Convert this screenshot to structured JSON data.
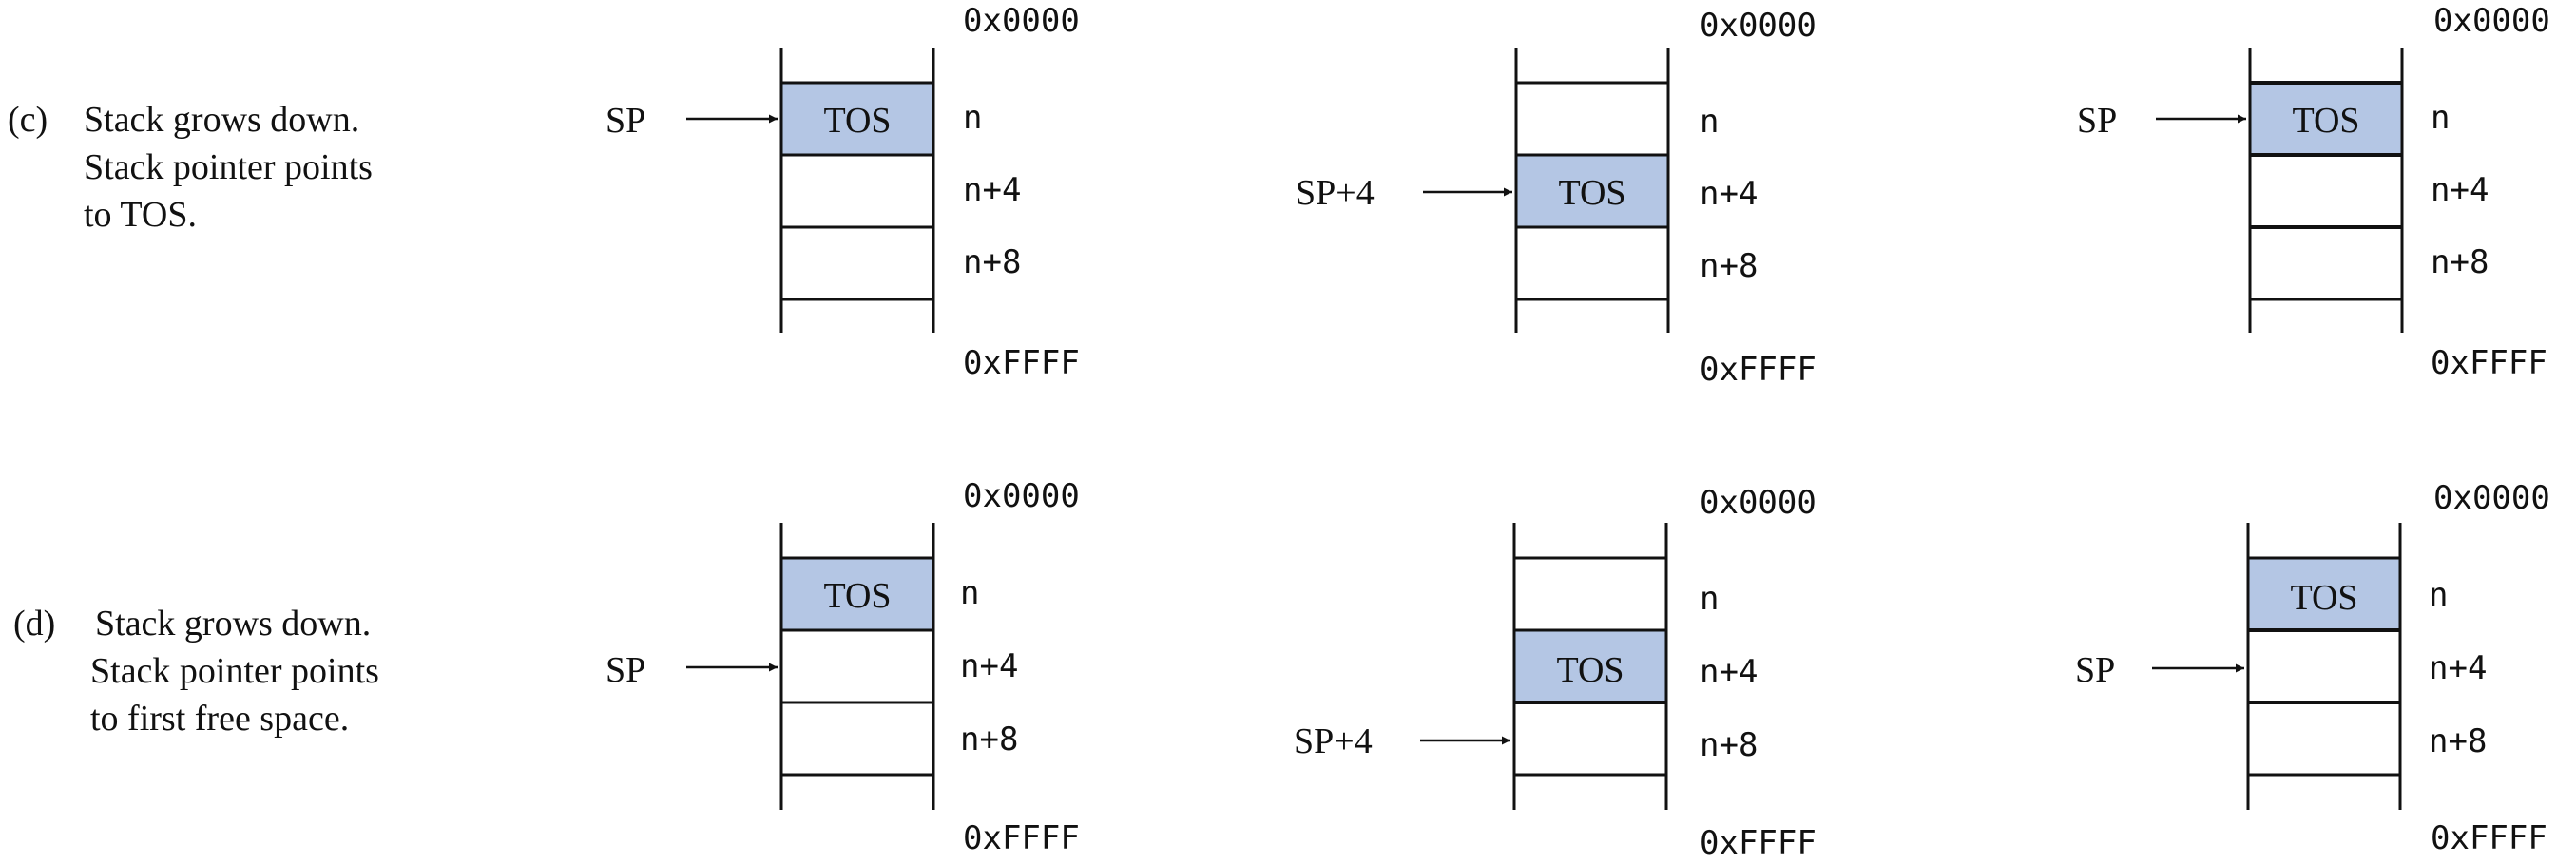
{
  "rows": [
    {
      "label": "(c)",
      "caption": [
        "Stack grows down.",
        "Stack pointer points",
        "to TOS."
      ],
      "diagrams": [
        {
          "pointer": "SP",
          "arrow_slot": 0,
          "tos_slot": 0,
          "top": "0x0000",
          "bottom": "0xFFFF",
          "slots": [
            "n",
            "n+4",
            "n+8"
          ],
          "tos_label": "TOS"
        },
        {
          "pointer": "SP+4",
          "arrow_slot": 1,
          "tos_slot": 1,
          "top": "0x0000",
          "bottom": "0xFFFF",
          "slots": [
            "n",
            "n+4",
            "n+8"
          ],
          "tos_label": "TOS"
        },
        {
          "pointer": "SP",
          "arrow_slot": 0,
          "tos_slot": 0,
          "top": "0x0000",
          "bottom": "0xFFFF",
          "slots": [
            "n",
            "n+4",
            "n+8"
          ],
          "tos_label": "TOS"
        }
      ]
    },
    {
      "label": "(d)",
      "caption": [
        "Stack grows down.",
        "Stack pointer points",
        "to first free space."
      ],
      "diagrams": [
        {
          "pointer": "SP",
          "arrow_slot": 1,
          "tos_slot": 0,
          "top": "0x0000",
          "bottom": "0xFFFF",
          "slots": [
            "n",
            "n+4",
            "n+8"
          ],
          "tos_label": "TOS"
        },
        {
          "pointer": "SP+4",
          "arrow_slot": 2,
          "tos_slot": 1,
          "top": "0x0000",
          "bottom": "0xFFFF",
          "slots": [
            "n",
            "n+4",
            "n+8"
          ],
          "tos_label": "TOS"
        },
        {
          "pointer": "SP",
          "arrow_slot": 1,
          "tos_slot": 0,
          "top": "0x0000",
          "bottom": "0xFFFF",
          "slots": [
            "n",
            "n+4",
            "n+8"
          ],
          "tos_label": "TOS"
        }
      ]
    }
  ]
}
